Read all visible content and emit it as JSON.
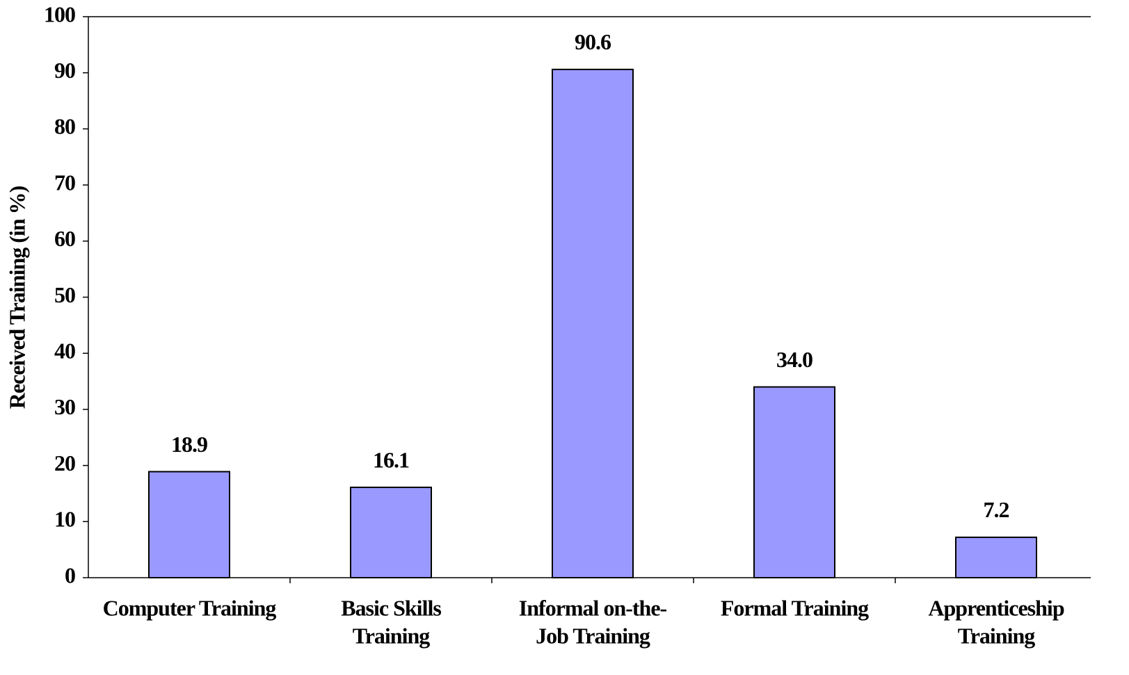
{
  "chart_data": {
    "type": "bar",
    "y_axis_label": "Received Training (in %)",
    "categories": [
      [
        "Computer Training"
      ],
      [
        "Basic Skills",
        "Training"
      ],
      [
        "Informal on-the-",
        "Job Training"
      ],
      [
        "Formal Training"
      ],
      [
        "Apprenticeship",
        "Training"
      ]
    ],
    "values": [
      18.9,
      16.1,
      90.6,
      34,
      7.2
    ],
    "value_labels": [
      "18.9",
      "16.1",
      "90.6",
      "34.0",
      "7.2"
    ],
    "color": "#9999ff",
    "ylim": [
      0,
      100
    ],
    "yticks": [
      0,
      10,
      20,
      30,
      40,
      50,
      60,
      70,
      80,
      90,
      100
    ]
  }
}
